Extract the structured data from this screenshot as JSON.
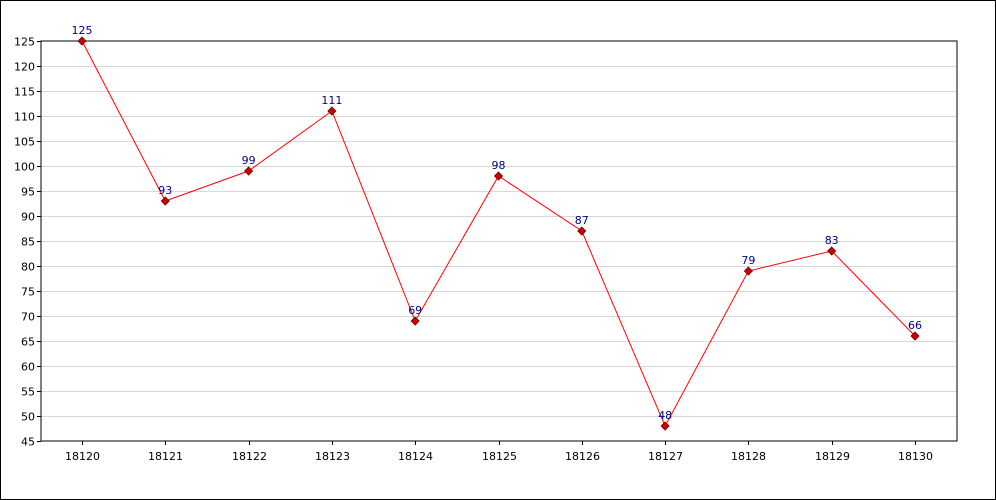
{
  "chart_data": {
    "type": "line",
    "title": "",
    "xlabel": "",
    "ylabel": "",
    "x": [
      "18120",
      "18121",
      "18122",
      "18123",
      "18124",
      "18125",
      "18126",
      "18127",
      "18128",
      "18129",
      "18130"
    ],
    "series": [
      {
        "values": [
          125,
          93,
          99,
          111,
          69,
          98,
          87,
          48,
          79,
          83,
          66
        ],
        "color": "#ff0000",
        "marker_color": "#cc0000",
        "label_color": "#000080"
      }
    ],
    "ylim": [
      45,
      125
    ],
    "yticks": [
      "45",
      "50",
      "55",
      "60",
      "65",
      "70",
      "75",
      "80",
      "85",
      "90",
      "95",
      "100",
      "105",
      "110",
      "115",
      "120",
      "125"
    ],
    "grid": true,
    "grid_color": "#d8d8d8",
    "legend": "none"
  }
}
